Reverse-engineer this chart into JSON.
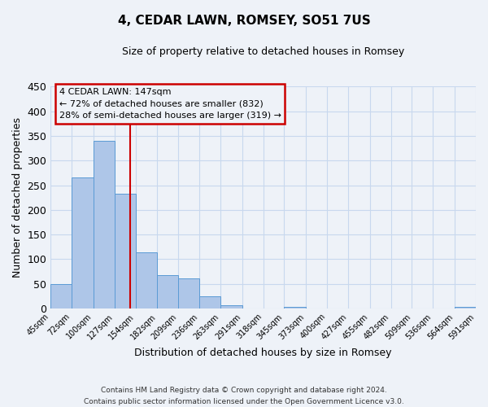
{
  "title": "4, CEDAR LAWN, ROMSEY, SO51 7US",
  "subtitle": "Size of property relative to detached houses in Romsey",
  "xlabel": "Distribution of detached houses by size in Romsey",
  "ylabel": "Number of detached properties",
  "bar_left_edges": [
    45,
    72,
    100,
    127,
    154,
    182,
    209,
    236,
    263,
    291,
    318,
    345,
    373,
    400,
    427,
    455,
    482,
    509,
    536,
    564
  ],
  "bar_widths": [
    27,
    28,
    27,
    27,
    28,
    27,
    27,
    27,
    28,
    27,
    27,
    28,
    27,
    27,
    28,
    27,
    27,
    27,
    28,
    27
  ],
  "bar_heights": [
    50,
    265,
    340,
    232,
    114,
    67,
    61,
    24,
    7,
    0,
    0,
    3,
    0,
    0,
    0,
    0,
    0,
    0,
    0,
    3
  ],
  "bar_color": "#aec6e8",
  "bar_edgecolor": "#5b9bd5",
  "tick_labels": [
    "45sqm",
    "72sqm",
    "100sqm",
    "127sqm",
    "154sqm",
    "182sqm",
    "209sqm",
    "236sqm",
    "263sqm",
    "291sqm",
    "318sqm",
    "345sqm",
    "373sqm",
    "400sqm",
    "427sqm",
    "455sqm",
    "482sqm",
    "509sqm",
    "536sqm",
    "564sqm",
    "591sqm"
  ],
  "ylim": [
    0,
    450
  ],
  "yticks": [
    0,
    50,
    100,
    150,
    200,
    250,
    300,
    350,
    400,
    450
  ],
  "vline_x": 147,
  "vline_color": "#cc0000",
  "annotation_title": "4 CEDAR LAWN: 147sqm",
  "annotation_line1": "← 72% of detached houses are smaller (832)",
  "annotation_line2": "28% of semi-detached houses are larger (319) →",
  "annotation_box_color": "#cc0000",
  "footer_line1": "Contains HM Land Registry data © Crown copyright and database right 2024.",
  "footer_line2": "Contains public sector information licensed under the Open Government Licence v3.0.",
  "background_color": "#eef2f8",
  "grid_color": "#c8d8ee"
}
